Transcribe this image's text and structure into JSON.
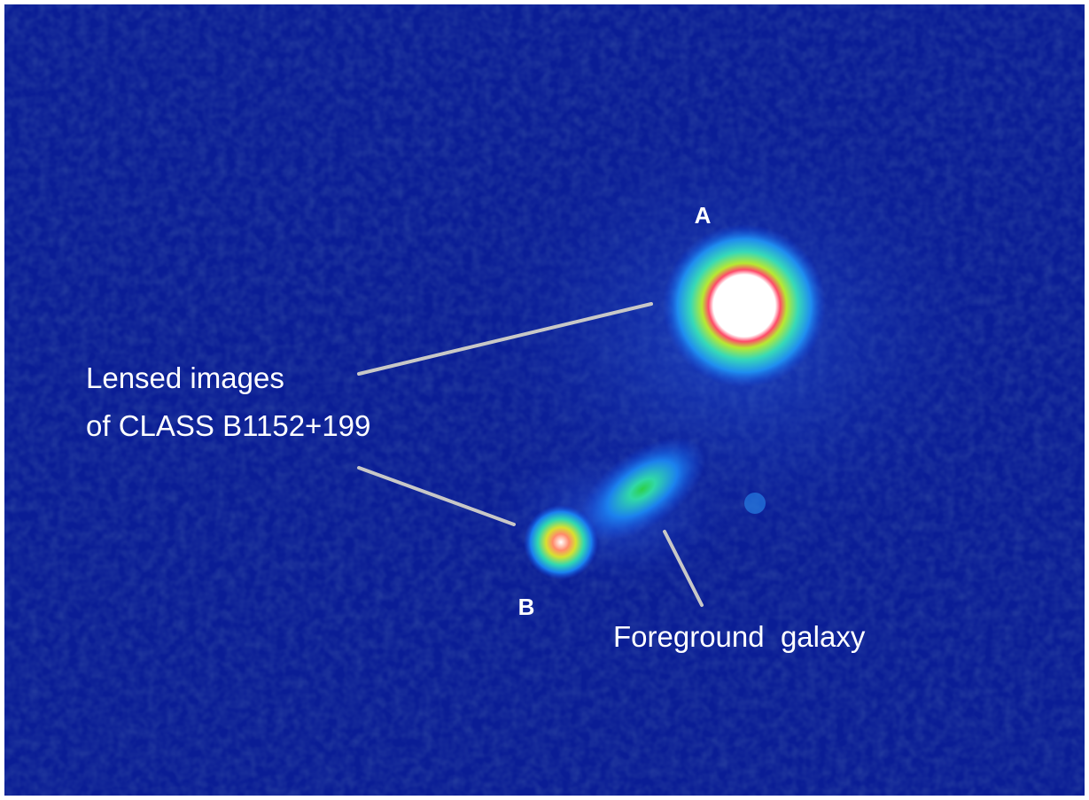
{
  "labels": {
    "a": "A",
    "b": "B",
    "lensed": [
      "Lensed images",
      "of CLASS B1152+199"
    ],
    "galaxy": "Foreground  galaxy"
  }
}
